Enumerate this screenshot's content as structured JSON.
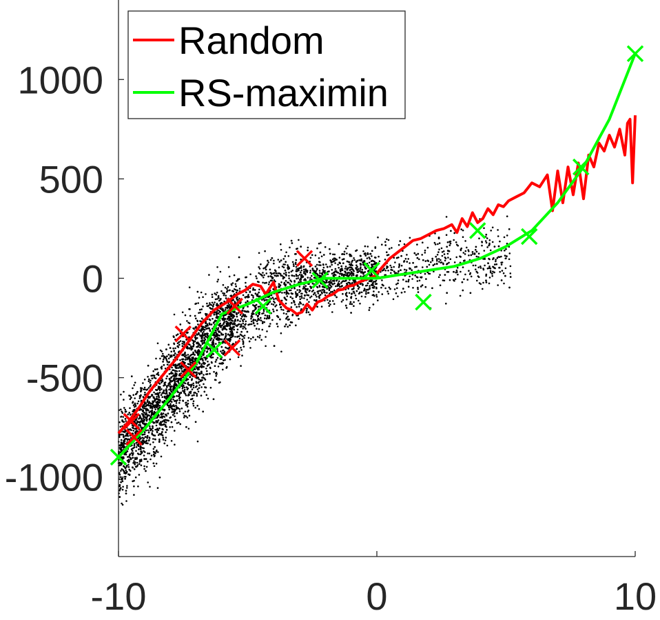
{
  "chart_data": {
    "type": "line",
    "xlim": [
      -10,
      10
    ],
    "ylim": [
      -1400,
      1400
    ],
    "x_ticks": [
      -10,
      0,
      10
    ],
    "y_ticks": [
      1000,
      500,
      0,
      -500,
      -1000
    ],
    "x_tick_labels": [
      "-10",
      "0",
      "10"
    ],
    "y_tick_labels": [
      "1000",
      "500",
      "0",
      "-500",
      "-1000"
    ],
    "grid": false,
    "legend_position": "top-left",
    "series": [
      {
        "name": "Random",
        "color": "#ff0000",
        "x": [
          -10,
          -9.6,
          -9.2,
          -8.8,
          -8.3,
          -7.8,
          -7.3,
          -6.8,
          -6.3,
          -5.8,
          -5.4,
          -5.1,
          -4.8,
          -4.5,
          -4.3,
          -4.0,
          -3.8,
          -3.5,
          -3.3,
          -3.1,
          -2.9,
          -2.7,
          -2.5,
          -2.3,
          -2.1,
          -1.9,
          -1.7,
          -1.5,
          -1.3,
          -1.1,
          -0.9,
          -0.7,
          -0.5,
          -0.3,
          -0.1,
          0.1,
          0.3,
          0.5,
          0.8,
          1.1,
          1.4,
          1.7,
          2.0,
          2.3,
          2.6,
          2.9,
          3.1,
          3.3,
          3.5,
          3.7,
          3.9,
          4.1,
          4.3,
          4.5,
          4.7,
          4.9,
          5.1,
          5.4,
          5.7,
          6.0,
          6.3,
          6.6,
          6.8,
          7.0,
          7.2,
          7.4,
          7.6,
          7.8,
          8.0,
          8.2,
          8.4,
          8.6,
          8.8,
          9.0,
          9.2,
          9.4,
          9.6,
          9.7,
          9.8,
          9.9,
          10.0
        ],
        "y": [
          -780,
          -720,
          -650,
          -570,
          -490,
          -410,
          -320,
          -230,
          -160,
          -120,
          -80,
          -60,
          -30,
          -40,
          -80,
          -20,
          -110,
          -150,
          -160,
          -180,
          -170,
          -130,
          -160,
          -120,
          -110,
          -90,
          -80,
          -60,
          -55,
          -40,
          -35,
          -20,
          -10,
          0,
          10,
          40,
          70,
          100,
          130,
          160,
          190,
          200,
          220,
          240,
          250,
          270,
          230,
          300,
          260,
          330,
          280,
          300,
          350,
          320,
          370,
          360,
          390,
          410,
          430,
          480,
          460,
          520,
          340,
          540,
          380,
          560,
          420,
          580,
          400,
          620,
          560,
          680,
          640,
          720,
          660,
          750,
          620,
          780,
          800,
          480,
          820
        ]
      },
      {
        "name": "RS-maximin",
        "color": "#00ff00",
        "x": [
          -10,
          -9.0,
          -8.0,
          -7.0,
          -6.0,
          -5.0,
          -4.0,
          -3.0,
          -2.0,
          -1.0,
          0.0,
          1.0,
          2.0,
          3.0,
          4.0,
          5.0,
          6.0,
          7.0,
          8.0,
          9.0,
          10.0
        ],
        "y": [
          -900,
          -760,
          -600,
          -430,
          -180,
          -130,
          -70,
          -30,
          0,
          0,
          0,
          20,
          40,
          60,
          100,
          160,
          240,
          380,
          560,
          800,
          1130
        ]
      }
    ],
    "markers": [
      {
        "series": "Random",
        "color": "#ff0000",
        "x": [
          -9.5,
          -9.4,
          -7.5,
          -7.3,
          -5.6,
          -5.5,
          -2.8
        ],
        "y": [
          -720,
          -800,
          -280,
          -460,
          -350,
          -140,
          100
        ]
      },
      {
        "series": "RS-maximin",
        "color": "#00ff00",
        "x": [
          -10.0,
          -6.3,
          -4.4,
          -2.2,
          -0.2,
          1.8,
          3.9,
          5.9,
          7.9,
          10.0
        ],
        "y": [
          -900,
          -360,
          -140,
          -10,
          40,
          -120,
          240,
          210,
          560,
          1130
        ]
      }
    ],
    "scatter_description": "dense cloud of small black points"
  }
}
